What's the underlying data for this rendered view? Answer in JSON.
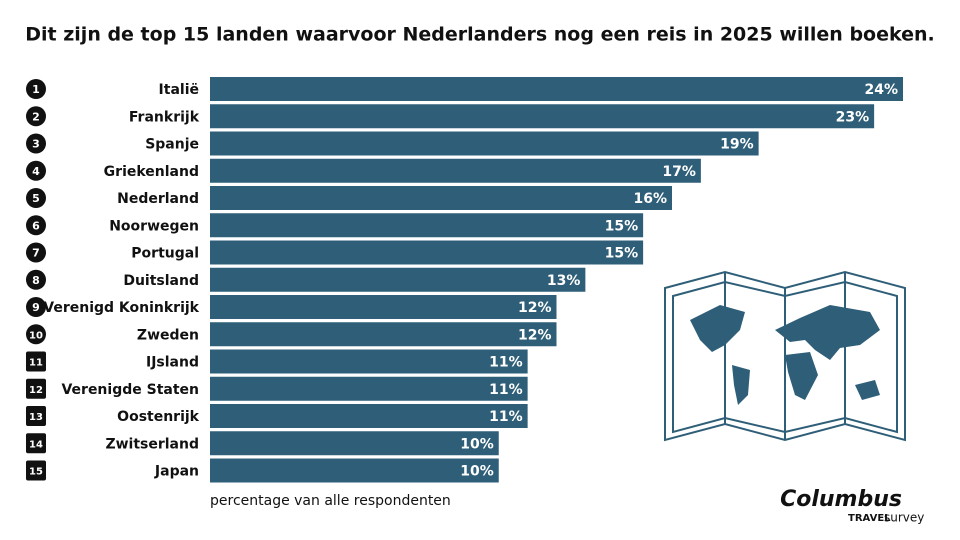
{
  "chart_data": {
    "type": "hbar",
    "title": "Dit zijn de top 15 landen waarvoor Nederlanders nog een reis in 2025 willen boeken.",
    "ranks": [
      "1",
      "2",
      "3",
      "4",
      "5",
      "6",
      "7",
      "8",
      "9",
      "10",
      "11",
      "12",
      "13",
      "14",
      "15"
    ],
    "categories": [
      "Italië",
      "Frankrijk",
      "Spanje",
      "Griekenland",
      "Nederland",
      "Noorwegen",
      "Portugal",
      "Duitsland",
      "Verenigd Koninkrijk",
      "Zweden",
      "IJsland",
      "Verenigde Staten",
      "Oostenrijk",
      "Zwitserland",
      "Japan"
    ],
    "values": [
      24,
      23,
      19,
      17,
      16,
      15,
      15,
      13,
      12,
      12,
      11,
      11,
      11,
      10,
      10
    ],
    "value_labels": [
      "24%",
      "23%",
      "19%",
      "17%",
      "16%",
      "15%",
      "15%",
      "13%",
      "12%",
      "12%",
      "11%",
      "11%",
      "11%",
      "10%",
      "10%"
    ],
    "color": "#2f5f78",
    "xlim": [
      0,
      24
    ],
    "x_label": "percentage van alle respondenten"
  },
  "logo": {
    "name": "Columbus",
    "line1": "TRAVEL",
    "line2": "survey"
  }
}
